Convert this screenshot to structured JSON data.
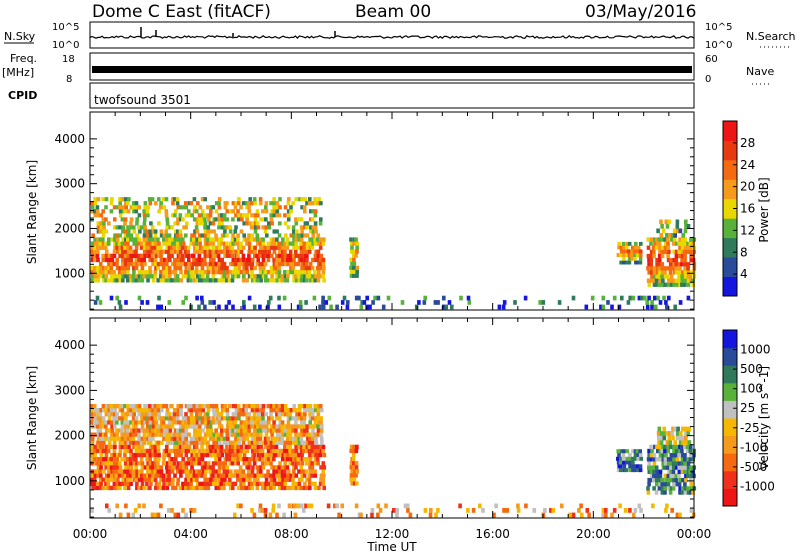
{
  "header": {
    "title": "Dome C East (fitACF)",
    "beam": "Beam 00",
    "date": "03/May/2016"
  },
  "strips": {
    "nsky_label": "N.Sky",
    "nsky_ticks": [
      "10^5",
      "10^0"
    ],
    "nsearch_label": "N.Search",
    "nsearch_ticks": [
      "10^5",
      "10^0"
    ],
    "freq_label": "Freq.",
    "freq_unit": "[MHz]",
    "freq_ticks": [
      "18",
      "8"
    ],
    "nave_label": "Nave",
    "nave_ticks": [
      "60",
      "0"
    ],
    "cpid_label": "CPID",
    "cpid_value": "twofsound 3501"
  },
  "colors": {
    "power": [
      "#1515e0",
      "#2a4a9a",
      "#2f7a5a",
      "#58b23a",
      "#e8d800",
      "#f59a1a",
      "#f56a10",
      "#e83a10",
      "#ee1515"
    ],
    "velocity": [
      "#ee1515",
      "#f0301a",
      "#f56a10",
      "#f59a1a",
      "#f5b800",
      "#c0c0c0",
      "#58b23a",
      "#2f7a5a",
      "#2a4a9a",
      "#1515e0"
    ]
  },
  "chart_data": [
    {
      "type": "heatmap",
      "name": "power",
      "title": "",
      "xlabel": "Time UT",
      "ylabel": "Slant Range [km]",
      "xlim": [
        0,
        24
      ],
      "ylim": [
        180,
        4600
      ],
      "x_ticks": [
        "00:00",
        "04:00",
        "08:00",
        "12:00",
        "16:00",
        "20:00",
        "00:00"
      ],
      "y_ticks": [
        1000,
        2000,
        3000,
        4000
      ],
      "colorbar_label": "Power [dB]",
      "colorbar_ticks": [
        "4",
        "8",
        "12",
        "16",
        "20",
        "24",
        "28"
      ],
      "clim": [
        0,
        32
      ],
      "regions": [
        {
          "t0": 0.0,
          "t1": 9.3,
          "r0": 800,
          "r1": 1800,
          "level": 0.85
        },
        {
          "t0": 0.0,
          "t1": 9.2,
          "r0": 1800,
          "r1": 2700,
          "level": 0.5
        },
        {
          "t0": 0.0,
          "t1": 24.0,
          "r0": 200,
          "r1": 500,
          "level": 0.2
        },
        {
          "t0": 10.3,
          "t1": 10.6,
          "r0": 900,
          "r1": 1800,
          "level": 0.7
        },
        {
          "t0": 20.9,
          "t1": 21.9,
          "r0": 1200,
          "r1": 1700,
          "level": 0.7
        },
        {
          "t0": 22.1,
          "t1": 24.0,
          "r0": 700,
          "r1": 1800,
          "level": 0.85
        },
        {
          "t0": 22.5,
          "t1": 23.8,
          "r0": 1800,
          "r1": 2200,
          "level": 0.4
        }
      ]
    },
    {
      "type": "heatmap",
      "name": "velocity",
      "title": "",
      "xlabel": "Time UT",
      "ylabel": "Slant Range [km]",
      "xlim": [
        0,
        24
      ],
      "ylim": [
        180,
        4600
      ],
      "x_ticks": [
        "00:00",
        "04:00",
        "08:00",
        "12:00",
        "16:00",
        "20:00",
        "00:00"
      ],
      "y_ticks": [
        1000,
        2000,
        3000,
        4000
      ],
      "colorbar_label": "Velocity [m s^-1]",
      "colorbar_ticks": [
        "-1000",
        "-500",
        "-100",
        "-25",
        "25",
        "100",
        "500",
        "1000"
      ],
      "clim": [
        -1500,
        1500
      ],
      "regions": [
        {
          "t0": 0.0,
          "t1": 9.3,
          "r0": 800,
          "r1": 1800,
          "level": 0.25
        },
        {
          "t0": 0.0,
          "t1": 9.2,
          "r0": 1800,
          "r1": 2700,
          "level": 0.4
        },
        {
          "t0": 0.0,
          "t1": 24.0,
          "r0": 200,
          "r1": 500,
          "level": 0.35
        },
        {
          "t0": 10.3,
          "t1": 10.6,
          "r0": 900,
          "r1": 1800,
          "level": 0.25
        },
        {
          "t0": 20.9,
          "t1": 21.9,
          "r0": 1200,
          "r1": 1700,
          "level": 0.75
        },
        {
          "t0": 22.1,
          "t1": 24.0,
          "r0": 700,
          "r1": 1800,
          "level": 0.7
        },
        {
          "t0": 22.5,
          "t1": 23.8,
          "r0": 1800,
          "r1": 2200,
          "level": 0.55
        }
      ]
    }
  ]
}
